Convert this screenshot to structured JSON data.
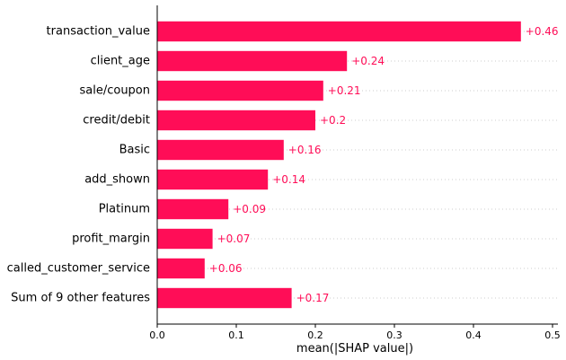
{
  "chart_data": {
    "type": "bar",
    "orientation": "horizontal",
    "categories": [
      "transaction_value",
      "client_age",
      "sale/coupon",
      "credit/debit",
      "Basic",
      "add_shown",
      "Platinum",
      "profit_margin",
      "called_customer_service",
      "Sum of 9 other features"
    ],
    "values": [
      0.46,
      0.24,
      0.21,
      0.2,
      0.16,
      0.14,
      0.09,
      0.07,
      0.06,
      0.17
    ],
    "value_labels": [
      "+0.46",
      "+0.24",
      "+0.21",
      "+0.2",
      "+0.16",
      "+0.14",
      "+0.09",
      "+0.07",
      "+0.06",
      "+0.17"
    ],
    "xlabel": "mean(|SHAP value|)",
    "xlim": [
      0,
      0.5
    ],
    "xticks": [
      "0.0",
      "0.1",
      "0.2",
      "0.3",
      "0.4",
      "0.5"
    ],
    "bar_color": "#ff0d57",
    "label_color": "#ff0d57",
    "grid": "dotted horizontal guide lines"
  }
}
